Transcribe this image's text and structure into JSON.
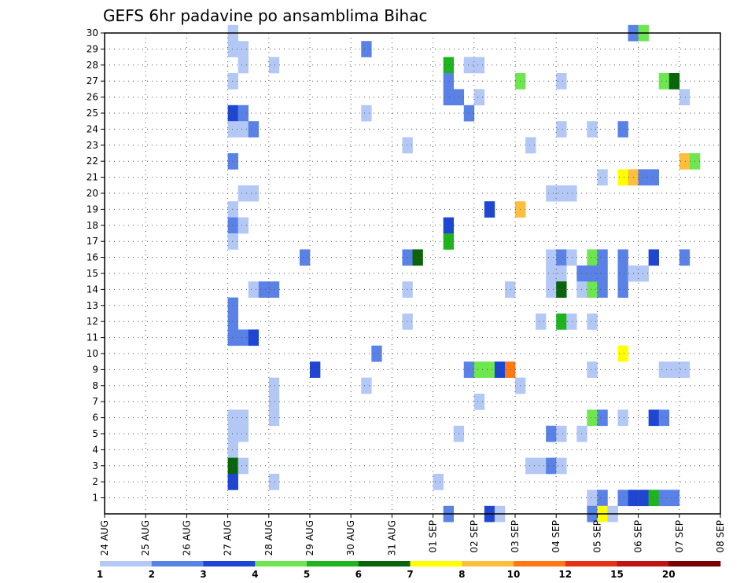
{
  "chart_data": {
    "type": "heatmap",
    "title": "GEFS 6hr padavine po ansamblima Bihac",
    "x_ticks": [
      "24 AUG",
      "25 AUG",
      "26 AUG",
      "27 AUG",
      "28 AUG",
      "29 AUG",
      "30 AUG",
      "31 AUG",
      "01 SEP",
      "02 SEP",
      "03 SEP",
      "04 SEP",
      "05 SEP",
      "06 SEP",
      "07 SEP",
      "08 SEP"
    ],
    "y_ticks": [
      1,
      2,
      3,
      4,
      5,
      6,
      7,
      8,
      9,
      10,
      11,
      12,
      13,
      14,
      15,
      16,
      17,
      18,
      19,
      20,
      21,
      22,
      23,
      24,
      25,
      26,
      27,
      28,
      29,
      30
    ],
    "x_unit": "6h steps from 24 AUG 00Z",
    "ylim": [
      0,
      30
    ],
    "grid": true,
    "legend": {
      "placement": "bottom",
      "labels": [
        "1",
        "2",
        "3",
        "4",
        "5",
        "6",
        "7",
        "8",
        "10",
        "12",
        "15",
        "20"
      ],
      "colors": [
        "#b4c8f5",
        "#5a82e6",
        "#1e46d2",
        "#6ee650",
        "#1eb41e",
        "#0a640a",
        "#ffff00",
        "#ffbe3c",
        "#ff7814",
        "#e63214",
        "#be1414",
        "#780000"
      ]
    },
    "cells": [
      [
        12,
        30,
        0
      ],
      [
        12,
        29,
        0
      ],
      [
        13,
        29,
        0
      ],
      [
        13,
        28,
        0
      ],
      [
        16,
        28,
        0
      ],
      [
        12,
        27,
        0
      ],
      [
        12,
        25,
        2
      ],
      [
        12,
        24,
        0
      ],
      [
        12,
        22,
        1
      ],
      [
        12,
        19,
        0
      ],
      [
        12,
        18,
        1
      ],
      [
        12,
        17,
        0
      ],
      [
        12,
        13,
        1
      ],
      [
        12,
        12,
        1
      ],
      [
        12,
        11,
        1
      ],
      [
        12,
        6,
        0
      ],
      [
        12,
        5,
        0
      ],
      [
        12,
        4,
        0
      ],
      [
        12,
        3,
        5
      ],
      [
        12,
        2,
        2
      ],
      [
        13,
        25,
        1
      ],
      [
        13,
        24,
        0
      ],
      [
        14,
        24,
        1
      ],
      [
        13,
        20,
        0
      ],
      [
        14,
        20,
        0
      ],
      [
        13,
        18,
        0
      ],
      [
        13,
        11,
        1
      ],
      [
        14,
        11,
        2
      ],
      [
        13,
        6,
        0
      ],
      [
        13,
        5,
        0
      ],
      [
        13,
        3,
        0
      ],
      [
        14,
        14,
        0
      ],
      [
        15,
        14,
        1
      ],
      [
        16,
        14,
        1
      ],
      [
        16,
        8,
        0
      ],
      [
        16,
        7,
        0
      ],
      [
        16,
        6,
        0
      ],
      [
        16,
        2,
        0
      ],
      [
        19,
        16,
        1
      ],
      [
        20,
        9,
        2
      ],
      [
        25,
        29,
        1
      ],
      [
        25,
        25,
        0
      ],
      [
        25,
        8,
        0
      ],
      [
        26,
        10,
        1
      ],
      [
        29,
        23,
        0
      ],
      [
        29,
        16,
        1
      ],
      [
        30,
        16,
        5
      ],
      [
        29,
        14,
        0
      ],
      [
        29,
        12,
        0
      ],
      [
        32,
        2,
        0
      ],
      [
        33,
        28,
        4
      ],
      [
        33,
        27,
        1
      ],
      [
        33,
        26,
        1
      ],
      [
        34,
        26,
        1
      ],
      [
        33,
        18,
        2
      ],
      [
        33,
        17,
        4
      ],
      [
        33,
        0,
        1
      ],
      [
        34,
        5,
        0
      ],
      [
        35,
        9,
        1
      ],
      [
        36,
        9,
        3
      ],
      [
        37,
        9,
        3
      ],
      [
        35,
        28,
        0
      ],
      [
        36,
        28,
        0
      ],
      [
        36,
        26,
        0
      ],
      [
        35,
        25,
        1
      ],
      [
        36,
        7,
        0
      ],
      [
        37,
        19,
        2
      ],
      [
        37,
        0,
        2
      ],
      [
        38,
        0,
        0
      ],
      [
        38,
        9,
        2
      ],
      [
        39,
        9,
        8
      ],
      [
        39,
        14,
        0
      ],
      [
        40,
        27,
        3
      ],
      [
        40,
        19,
        7
      ],
      [
        40,
        8,
        0
      ],
      [
        41,
        23,
        0
      ],
      [
        41,
        3,
        0
      ],
      [
        42,
        3,
        0
      ],
      [
        43,
        3,
        1
      ],
      [
        44,
        3,
        0
      ],
      [
        42,
        12,
        0
      ],
      [
        43,
        20,
        0
      ],
      [
        44,
        20,
        0
      ],
      [
        45,
        20,
        0
      ],
      [
        43,
        16,
        0
      ],
      [
        43,
        15,
        0
      ],
      [
        43,
        14,
        0
      ],
      [
        44,
        27,
        0
      ],
      [
        44,
        24,
        0
      ],
      [
        44,
        16,
        1
      ],
      [
        45,
        16,
        0
      ],
      [
        44,
        15,
        0
      ],
      [
        44,
        14,
        5
      ],
      [
        44,
        12,
        4
      ],
      [
        45,
        12,
        0
      ],
      [
        43,
        5,
        1
      ],
      [
        44,
        5,
        0
      ],
      [
        46,
        5,
        0
      ],
      [
        46,
        15,
        1
      ],
      [
        46,
        14,
        0
      ],
      [
        47,
        14,
        3
      ],
      [
        47,
        16,
        3
      ],
      [
        48,
        15,
        1
      ],
      [
        48,
        14,
        1
      ],
      [
        47,
        15,
        1
      ],
      [
        48,
        16,
        1
      ],
      [
        47,
        12,
        0
      ],
      [
        47,
        9,
        0
      ],
      [
        47,
        24,
        0
      ],
      [
        48,
        21,
        0
      ],
      [
        47,
        6,
        3
      ],
      [
        48,
        6,
        1
      ],
      [
        47,
        1,
        0
      ],
      [
        47,
        0,
        1
      ],
      [
        48,
        1,
        1
      ],
      [
        48,
        0,
        6
      ],
      [
        49,
        0,
        0
      ],
      [
        50,
        24,
        1
      ],
      [
        50,
        21,
        6
      ],
      [
        51,
        21,
        7
      ],
      [
        52,
        21,
        1
      ],
      [
        53,
        21,
        1
      ],
      [
        50,
        16,
        1
      ],
      [
        50,
        15,
        1
      ],
      [
        51,
        15,
        0
      ],
      [
        52,
        15,
        0
      ],
      [
        50,
        14,
        1
      ],
      [
        50,
        10,
        6
      ],
      [
        50,
        6,
        0
      ],
      [
        50,
        1,
        1
      ],
      [
        51,
        30,
        1
      ],
      [
        52,
        30,
        3
      ],
      [
        51,
        1,
        2
      ],
      [
        52,
        1,
        2
      ],
      [
        53,
        1,
        4
      ],
      [
        54,
        1,
        1
      ],
      [
        53,
        16,
        2
      ],
      [
        53,
        6,
        2
      ],
      [
        54,
        6,
        1
      ],
      [
        54,
        27,
        3
      ],
      [
        55,
        27,
        5
      ],
      [
        54,
        9,
        0
      ],
      [
        55,
        9,
        0
      ],
      [
        55,
        1,
        1
      ],
      [
        56,
        16,
        1
      ],
      [
        56,
        9,
        0
      ],
      [
        56,
        26,
        0
      ],
      [
        56,
        22,
        7
      ],
      [
        57,
        22,
        3
      ]
    ]
  }
}
